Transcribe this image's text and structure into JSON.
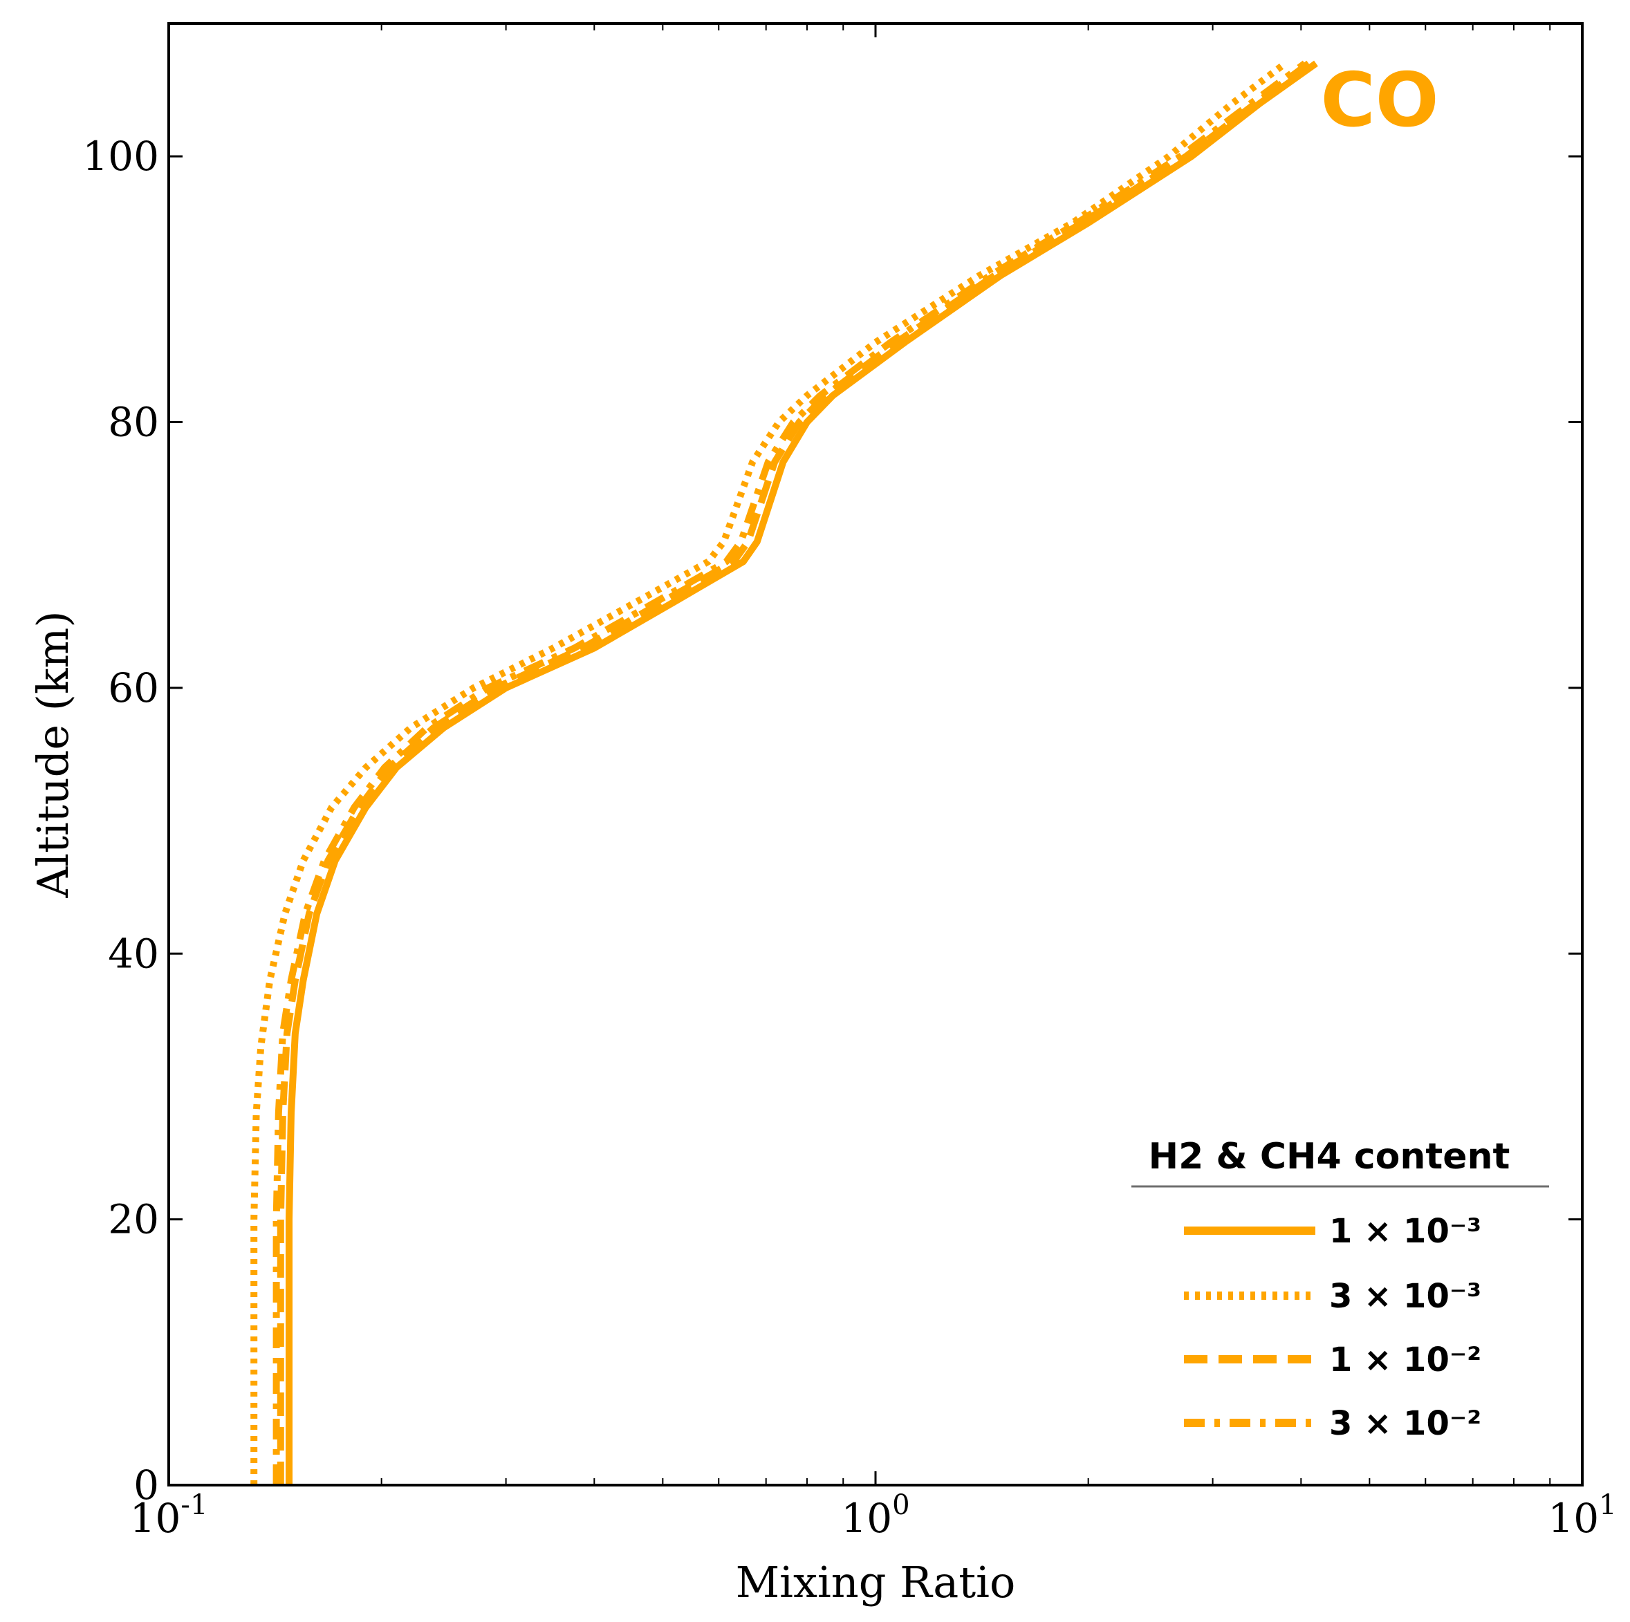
{
  "chart_data": {
    "type": "line",
    "title": "",
    "species_label": "CO",
    "xlabel": "Mixing Ratio",
    "ylabel": "Altitude (km)",
    "xscale": "log",
    "xlim": [
      0.1,
      10
    ],
    "ylim": [
      0,
      110
    ],
    "x_ticks": [
      {
        "value": 0.1,
        "base": "10",
        "exp": "-1"
      },
      {
        "value": 1,
        "base": "10",
        "exp": "0"
      },
      {
        "value": 10,
        "base": "10",
        "exp": "1"
      }
    ],
    "y_ticks": [
      0,
      20,
      40,
      60,
      80,
      100
    ],
    "colors": {
      "series": "#FFA500"
    },
    "legend": {
      "title": "H2 & CH4 content",
      "placement": "lower-right"
    },
    "series": [
      {
        "name": "1 × 10⁻³",
        "style": "solid",
        "points": [
          [
            0.148,
            0
          ],
          [
            0.148,
            10
          ],
          [
            0.148,
            20
          ],
          [
            0.149,
            28
          ],
          [
            0.151,
            34
          ],
          [
            0.155,
            38
          ],
          [
            0.162,
            43
          ],
          [
            0.172,
            47
          ],
          [
            0.19,
            51
          ],
          [
            0.21,
            54
          ],
          [
            0.245,
            57
          ],
          [
            0.3,
            60
          ],
          [
            0.4,
            63
          ],
          [
            0.52,
            66.5
          ],
          [
            0.65,
            69.5
          ],
          [
            0.68,
            71
          ],
          [
            0.74,
            77
          ],
          [
            0.8,
            80
          ],
          [
            0.87,
            82
          ],
          [
            1.1,
            86
          ],
          [
            1.5,
            91
          ],
          [
            2.0,
            95
          ],
          [
            2.8,
            100
          ],
          [
            3.5,
            104
          ],
          [
            4.2,
            107
          ]
        ]
      },
      {
        "name": "3 × 10⁻³",
        "style": "dotted",
        "points": [
          [
            0.132,
            0
          ],
          [
            0.132,
            10
          ],
          [
            0.132,
            20
          ],
          [
            0.133,
            28
          ],
          [
            0.135,
            33
          ],
          [
            0.139,
            38
          ],
          [
            0.146,
            43
          ],
          [
            0.155,
            47
          ],
          [
            0.17,
            51
          ],
          [
            0.19,
            54
          ],
          [
            0.22,
            57
          ],
          [
            0.27,
            60
          ],
          [
            0.35,
            63
          ],
          [
            0.46,
            66.5
          ],
          [
            0.58,
            69.5
          ],
          [
            0.61,
            71
          ],
          [
            0.67,
            77
          ],
          [
            0.73,
            80
          ],
          [
            0.8,
            82
          ],
          [
            1.0,
            86
          ],
          [
            1.4,
            91
          ],
          [
            1.9,
            95
          ],
          [
            2.6,
            100
          ],
          [
            3.2,
            104
          ],
          [
            3.8,
            107
          ]
        ]
      },
      {
        "name": "1 × 10⁻²",
        "style": "dashed",
        "points": [
          [
            0.144,
            0
          ],
          [
            0.144,
            10
          ],
          [
            0.144,
            20
          ],
          [
            0.145,
            28
          ],
          [
            0.147,
            34
          ],
          [
            0.151,
            38
          ],
          [
            0.158,
            43
          ],
          [
            0.168,
            47
          ],
          [
            0.186,
            51
          ],
          [
            0.205,
            54
          ],
          [
            0.237,
            57
          ],
          [
            0.29,
            60
          ],
          [
            0.385,
            63
          ],
          [
            0.5,
            66.5
          ],
          [
            0.63,
            69.5
          ],
          [
            0.66,
            71
          ],
          [
            0.72,
            77
          ],
          [
            0.78,
            80
          ],
          [
            0.85,
            82
          ],
          [
            1.07,
            86
          ],
          [
            1.47,
            91
          ],
          [
            1.96,
            95
          ],
          [
            2.75,
            100
          ],
          [
            3.45,
            104
          ],
          [
            4.1,
            107
          ]
        ]
      },
      {
        "name": "3 × 10⁻²",
        "style": "dashdot",
        "points": [
          [
            0.142,
            0
          ],
          [
            0.142,
            10
          ],
          [
            0.142,
            20
          ],
          [
            0.143,
            28
          ],
          [
            0.145,
            34
          ],
          [
            0.149,
            38
          ],
          [
            0.156,
            43
          ],
          [
            0.166,
            47
          ],
          [
            0.183,
            51
          ],
          [
            0.202,
            54
          ],
          [
            0.232,
            57
          ],
          [
            0.283,
            60
          ],
          [
            0.375,
            63
          ],
          [
            0.49,
            66.5
          ],
          [
            0.615,
            69.5
          ],
          [
            0.645,
            71
          ],
          [
            0.705,
            77
          ],
          [
            0.765,
            80
          ],
          [
            0.835,
            82
          ],
          [
            1.05,
            86
          ],
          [
            1.45,
            91
          ],
          [
            1.93,
            95
          ],
          [
            2.7,
            100
          ],
          [
            3.4,
            104
          ],
          [
            4.05,
            107
          ]
        ]
      }
    ]
  }
}
